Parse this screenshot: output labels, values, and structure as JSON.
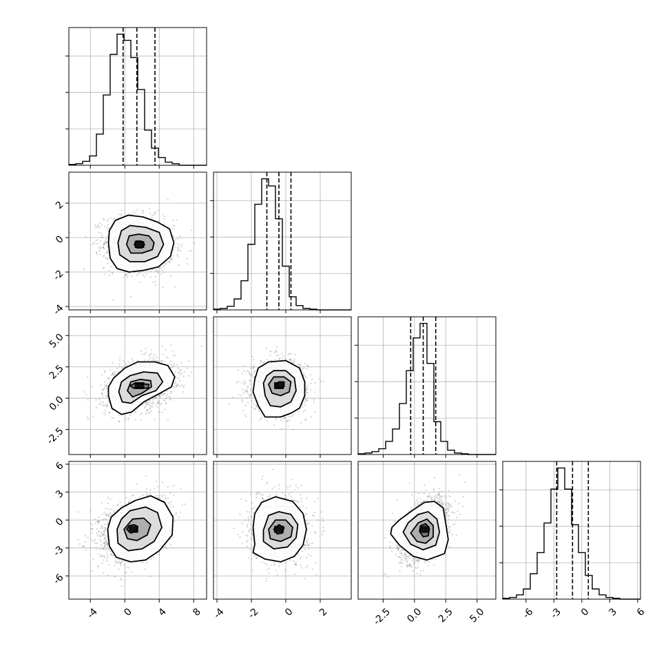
{
  "chart_data": {
    "type": "corner",
    "grid": true,
    "variables": [
      {
        "ticks": [
          -4,
          0,
          4,
          8
        ],
        "tick_labels": [
          "-4",
          "0",
          "4",
          "8"
        ],
        "range": [
          -6.5,
          9.5
        ],
        "quantiles": [
          -0.2,
          1.4,
          3.5
        ]
      },
      {
        "ticks": [
          -4,
          -2,
          0,
          2
        ],
        "tick_labels": [
          "-4",
          "-2",
          "0",
          "2"
        ],
        "range": [
          -4.2,
          3.8
        ],
        "quantiles": [
          -1.1,
          -0.4,
          0.3
        ]
      },
      {
        "ticks": [
          -2.5,
          0.0,
          2.5,
          5.0
        ],
        "tick_labels": [
          "-2.5",
          "0.0",
          "2.5",
          "5.0"
        ],
        "range": [
          -4.5,
          6.5
        ],
        "quantiles": [
          -0.3,
          0.7,
          1.7
        ]
      },
      {
        "ticks": [
          -6,
          -3,
          0,
          3,
          6
        ],
        "tick_labels": [
          "-6",
          "-3",
          "0",
          "3",
          "6"
        ],
        "range": [
          -8.5,
          6.3
        ],
        "quantiles": [
          -2.7,
          -1.0,
          0.7
        ]
      }
    ],
    "histograms": [
      {
        "edges_start": -6.5,
        "bin_width": 0.8,
        "counts": [
          1,
          2,
          5,
          12,
          40,
          90,
          142,
          168,
          160,
          138,
          97,
          45,
          22,
          10,
          4,
          2,
          0,
          0,
          0,
          0
        ]
      },
      {
        "edges_start": -4.2,
        "bin_width": 0.4,
        "counts": [
          1,
          2,
          5,
          15,
          40,
          90,
          145,
          180,
          170,
          125,
          60,
          18,
          6,
          2,
          1,
          0,
          0,
          0,
          0,
          0
        ]
      },
      {
        "edges_start": -4.5,
        "bin_width": 0.55,
        "counts": [
          1,
          2,
          4,
          8,
          18,
          35,
          70,
          115,
          160,
          180,
          125,
          45,
          18,
          6,
          2,
          1,
          0,
          0,
          0,
          0
        ]
      },
      {
        "edges_start": -8.5,
        "bin_width": 0.74,
        "counts": [
          1,
          2,
          5,
          12,
          30,
          55,
          90,
          130,
          155,
          130,
          88,
          55,
          28,
          12,
          5,
          2,
          1,
          0,
          0,
          0
        ]
      }
    ],
    "pairs": [
      {
        "row": 1,
        "col": 0,
        "center": [
          1.7,
          -0.4
        ],
        "sigma_x": 2.0,
        "sigma_y": 0.8,
        "rho": -0.1,
        "contours": [
          [
            [
              -1.9,
              -0.3
            ],
            [
              -1.7,
              -1.2
            ],
            [
              -0.9,
              -1.8
            ],
            [
              0.5,
              -2.0
            ],
            [
              2.2,
              -1.9
            ],
            [
              3.9,
              -1.7
            ],
            [
              5.3,
              -1.1
            ],
            [
              5.7,
              -0.3
            ],
            [
              5.2,
              0.5
            ],
            [
              3.8,
              0.9
            ],
            [
              2.1,
              1.2
            ],
            [
              0.4,
              1.3
            ],
            [
              -1.1,
              1.0
            ],
            [
              -1.8,
              0.4
            ]
          ],
          [
            [
              -0.8,
              -0.3
            ],
            [
              -0.6,
              -1.0
            ],
            [
              0.6,
              -1.4
            ],
            [
              2.3,
              -1.4
            ],
            [
              3.8,
              -1.1
            ],
            [
              4.5,
              -0.4
            ],
            [
              4.0,
              0.3
            ],
            [
              2.4,
              0.6
            ],
            [
              0.6,
              0.7
            ],
            [
              -0.4,
              0.4
            ]
          ],
          [
            [
              0.2,
              -0.4
            ],
            [
              0.7,
              -0.9
            ],
            [
              2.0,
              -0.9
            ],
            [
              3.2,
              -0.7
            ],
            [
              3.4,
              -0.3
            ],
            [
              2.8,
              0.1
            ],
            [
              1.6,
              0.2
            ],
            [
              0.5,
              0.1
            ]
          ],
          [
            [
              1.1,
              -0.4
            ],
            [
              1.4,
              -0.6
            ],
            [
              2.0,
              -0.6
            ],
            [
              2.3,
              -0.4
            ],
            [
              1.9,
              -0.2
            ],
            [
              1.3,
              -0.2
            ]
          ]
        ]
      },
      {
        "row": 2,
        "col": 0,
        "center": [
          1.7,
          1.0
        ],
        "sigma_x": 2.0,
        "sigma_y": 1.0,
        "rho": 0.3,
        "contours": [
          [
            [
              -1.9,
              0.2
            ],
            [
              -1.5,
              -0.8
            ],
            [
              -0.4,
              -1.3
            ],
            [
              0.8,
              -1.1
            ],
            [
              2.2,
              -0.3
            ],
            [
              4.1,
              0.4
            ],
            [
              5.4,
              0.9
            ],
            [
              5.8,
              1.7
            ],
            [
              5.0,
              2.6
            ],
            [
              3.5,
              2.9
            ],
            [
              1.5,
              2.9
            ],
            [
              0.0,
              2.4
            ],
            [
              -1.3,
              1.6
            ],
            [
              -1.9,
              0.9
            ]
          ],
          [
            [
              -0.7,
              0.5
            ],
            [
              -0.3,
              -0.3
            ],
            [
              0.7,
              -0.4
            ],
            [
              2.0,
              0.2
            ],
            [
              3.6,
              0.6
            ],
            [
              4.4,
              1.3
            ],
            [
              3.8,
              2.0
            ],
            [
              2.2,
              2.1
            ],
            [
              0.6,
              1.8
            ],
            [
              -0.4,
              1.3
            ]
          ],
          [
            [
              0.3,
              0.6
            ],
            [
              0.9,
              0.1
            ],
            [
              2.0,
              0.4
            ],
            [
              3.1,
              0.9
            ],
            [
              3.0,
              1.4
            ],
            [
              1.8,
              1.5
            ],
            [
              0.7,
              1.3
            ]
          ],
          [
            [
              0.6,
              1.0
            ],
            [
              1.0,
              0.8
            ],
            [
              2.7,
              0.8
            ],
            [
              2.8,
              1.1
            ],
            [
              1.2,
              1.2
            ]
          ]
        ]
      },
      {
        "row": 2,
        "col": 1,
        "center": [
          -0.4,
          1.0
        ],
        "sigma_x": 0.8,
        "sigma_y": 1.0,
        "rho": 0.0,
        "contours": [
          [
            [
              -1.8,
              1.5
            ],
            [
              -1.9,
              0.5
            ],
            [
              -1.6,
              -0.6
            ],
            [
              -1.2,
              -1.5
            ],
            [
              -0.3,
              -1.5
            ],
            [
              0.3,
              -1.2
            ],
            [
              0.8,
              -0.8
            ],
            [
              1.1,
              0.2
            ],
            [
              1.1,
              1.3
            ],
            [
              0.8,
              2.4
            ],
            [
              0.0,
              3.0
            ],
            [
              -1.0,
              2.9
            ],
            [
              -1.6,
              2.4
            ]
          ],
          [
            [
              -1.3,
              1.2
            ],
            [
              -1.2,
              0.2
            ],
            [
              -0.9,
              -0.6
            ],
            [
              -0.3,
              -0.7
            ],
            [
              0.3,
              -0.3
            ],
            [
              0.6,
              0.6
            ],
            [
              0.5,
              1.6
            ],
            [
              0.0,
              2.2
            ],
            [
              -0.7,
              2.2
            ],
            [
              -1.1,
              1.8
            ]
          ],
          [
            [
              -1.0,
              1.1
            ],
            [
              -0.8,
              0.4
            ],
            [
              -0.3,
              0.2
            ],
            [
              0.2,
              0.5
            ],
            [
              0.3,
              1.3
            ],
            [
              -0.1,
              1.7
            ],
            [
              -0.7,
              1.7
            ]
          ],
          [
            [
              -0.6,
              1.1
            ],
            [
              -0.4,
              0.8
            ],
            [
              -0.1,
              0.9
            ],
            [
              -0.1,
              1.3
            ],
            [
              -0.4,
              1.3
            ]
          ]
        ]
      },
      {
        "row": 3,
        "col": 0,
        "center": [
          1.0,
          -1.0
        ],
        "sigma_x": 2.0,
        "sigma_y": 1.7,
        "rho": 0.3,
        "contours": [
          [
            [
              -2.0,
              -1.0
            ],
            [
              -1.8,
              -2.8
            ],
            [
              -1.0,
              -4.0
            ],
            [
              0.7,
              -4.5
            ],
            [
              2.4,
              -4.3
            ],
            [
              4.0,
              -3.3
            ],
            [
              5.5,
              -1.6
            ],
            [
              5.6,
              0.3
            ],
            [
              4.6,
              1.9
            ],
            [
              3.0,
              2.6
            ],
            [
              1.2,
              2.1
            ],
            [
              -0.4,
              1.3
            ],
            [
              -1.6,
              0.3
            ]
          ],
          [
            [
              -0.9,
              -1.0
            ],
            [
              -0.8,
              -2.5
            ],
            [
              0.4,
              -3.3
            ],
            [
              2.0,
              -3.1
            ],
            [
              3.4,
              -2.3
            ],
            [
              4.3,
              -0.8
            ],
            [
              3.8,
              0.8
            ],
            [
              2.4,
              1.4
            ],
            [
              0.6,
              1.0
            ],
            [
              -0.4,
              0.1
            ]
          ],
          [
            [
              -0.1,
              -1.0
            ],
            [
              0.3,
              -2.0
            ],
            [
              1.4,
              -2.2
            ],
            [
              2.6,
              -1.6
            ],
            [
              3.0,
              -0.5
            ],
            [
              2.2,
              0.2
            ],
            [
              0.9,
              0.1
            ]
          ],
          [
            [
              0.2,
              -1.0
            ],
            [
              0.7,
              -1.4
            ],
            [
              1.3,
              -1.2
            ],
            [
              1.5,
              -0.7
            ],
            [
              1.1,
              -0.5
            ],
            [
              0.5,
              -0.6
            ]
          ]
        ]
      },
      {
        "row": 3,
        "col": 1,
        "center": [
          -0.4,
          -1.0
        ],
        "sigma_x": 0.8,
        "sigma_y": 1.7,
        "rho": 0.0,
        "contours": [
          [
            [
              -1.9,
              -0.8
            ],
            [
              -1.8,
              -2.6
            ],
            [
              -1.9,
              -3.5
            ],
            [
              -1.2,
              -4.2
            ],
            [
              -0.3,
              -4.5
            ],
            [
              0.5,
              -3.9
            ],
            [
              1.0,
              -2.7
            ],
            [
              1.2,
              -1.0
            ],
            [
              1.0,
              0.7
            ],
            [
              0.4,
              2.0
            ],
            [
              -0.6,
              2.5
            ],
            [
              -1.4,
              1.9
            ],
            [
              -1.8,
              0.7
            ]
          ],
          [
            [
              -1.3,
              -1.1
            ],
            [
              -1.3,
              -2.3
            ],
            [
              -0.7,
              -3.1
            ],
            [
              0.1,
              -2.9
            ],
            [
              0.6,
              -1.9
            ],
            [
              0.7,
              -0.5
            ],
            [
              0.3,
              0.6
            ],
            [
              -0.4,
              0.9
            ],
            [
              -1.0,
              0.5
            ]
          ],
          [
            [
              -1.0,
              -1.0
            ],
            [
              -0.9,
              -2.0
            ],
            [
              -0.3,
              -2.3
            ],
            [
              0.3,
              -1.8
            ],
            [
              0.4,
              -0.8
            ],
            [
              0.0,
              0.0
            ],
            [
              -0.6,
              0.0
            ]
          ],
          [
            [
              -0.7,
              -1.0
            ],
            [
              -0.5,
              -1.5
            ],
            [
              -0.2,
              -1.4
            ],
            [
              -0.1,
              -0.8
            ],
            [
              -0.4,
              -0.5
            ]
          ]
        ]
      },
      {
        "row": 3,
        "col": 2,
        "center": [
          0.8,
          -1.0
        ],
        "sigma_x": 1.0,
        "sigma_y": 1.7,
        "rho": 0.45,
        "contours": [
          [
            [
              -1.9,
              -1.5
            ],
            [
              -1.2,
              -2.7
            ],
            [
              -0.1,
              -3.9
            ],
            [
              1.0,
              -4.3
            ],
            [
              2.4,
              -3.6
            ],
            [
              2.7,
              -2.1
            ],
            [
              2.5,
              -0.4
            ],
            [
              2.3,
              1.3
            ],
            [
              1.6,
              2.0
            ],
            [
              0.8,
              1.9
            ],
            [
              -0.2,
              1.0
            ],
            [
              -1.2,
              0.0
            ],
            [
              -1.8,
              -0.8
            ]
          ],
          [
            [
              -0.9,
              -1.3
            ],
            [
              -0.3,
              -2.6
            ],
            [
              0.7,
              -3.2
            ],
            [
              1.7,
              -2.7
            ],
            [
              2.0,
              -1.3
            ],
            [
              1.8,
              0.1
            ],
            [
              1.1,
              0.9
            ],
            [
              0.3,
              0.6
            ],
            [
              -0.5,
              -0.3
            ]
          ],
          [
            [
              -0.3,
              -1.4
            ],
            [
              0.2,
              -2.3
            ],
            [
              0.9,
              -2.5
            ],
            [
              1.5,
              -1.8
            ],
            [
              1.5,
              -0.6
            ],
            [
              1.0,
              0.1
            ],
            [
              0.3,
              -0.3
            ]
          ],
          [
            [
              0.4,
              -1.2
            ],
            [
              0.7,
              -1.8
            ],
            [
              1.1,
              -1.7
            ],
            [
              1.2,
              -0.9
            ],
            [
              0.9,
              -0.4
            ],
            [
              0.5,
              -0.6
            ]
          ]
        ]
      }
    ]
  }
}
